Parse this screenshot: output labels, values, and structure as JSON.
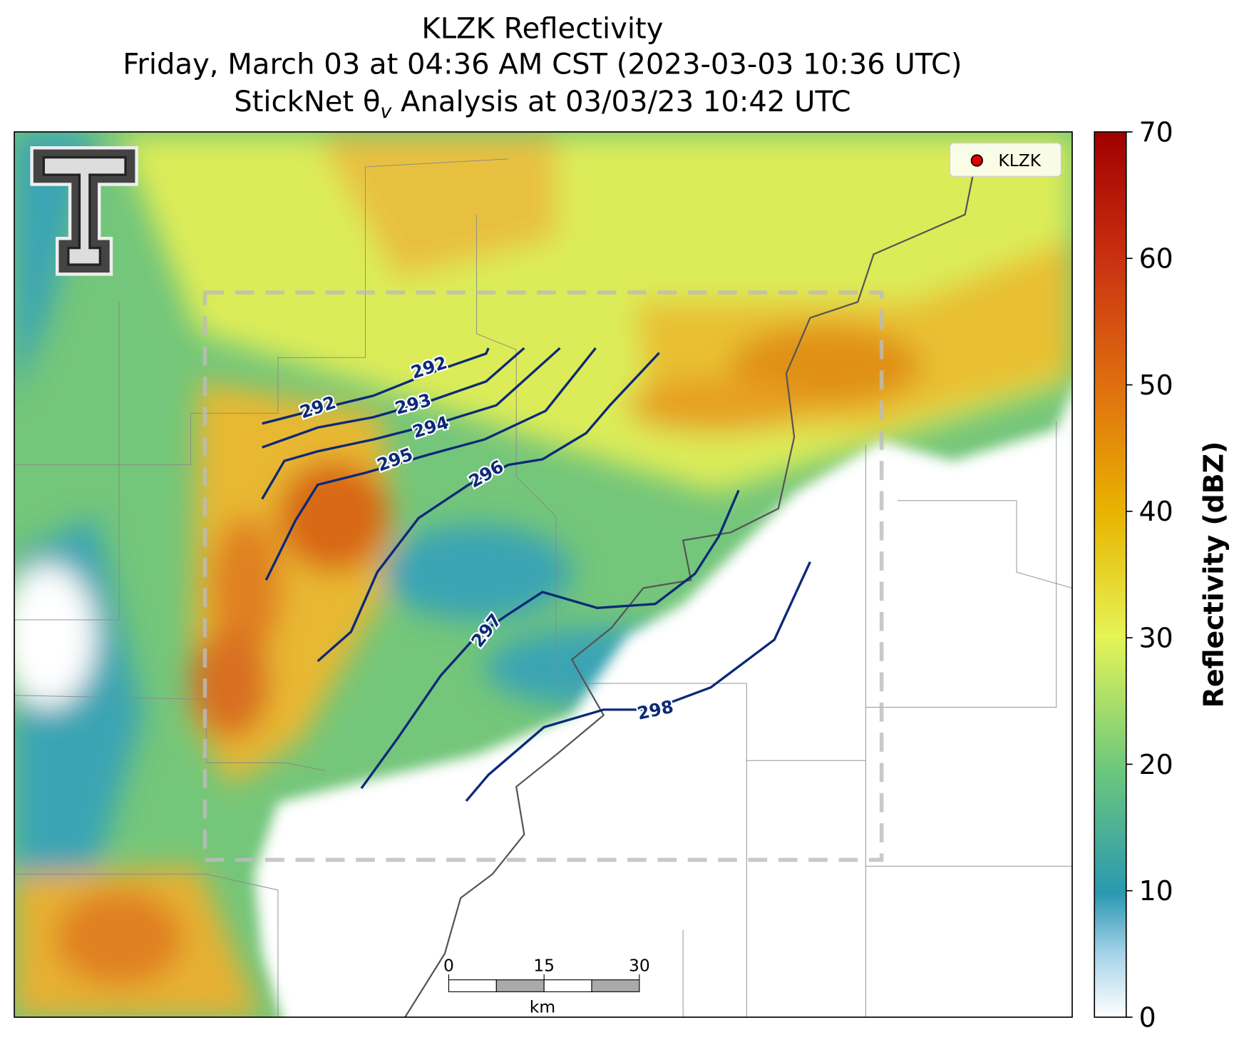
{
  "title": {
    "line1": "KLZK Reflectivity",
    "line2": "Friday, March 03 at 04:36 AM CST (2023-03-03 10:36 UTC)",
    "line3": "StickNet θv Analysis at 03/03/23 10:42 UTC"
  },
  "legend": {
    "label": "KLZK"
  },
  "colorbar": {
    "label": "Reflectivity (dBZ)",
    "lim": [
      0,
      70
    ],
    "ticks": [
      0,
      10,
      20,
      30,
      40,
      50,
      60,
      70
    ]
  },
  "contours": [
    {
      "label": "292"
    },
    {
      "label": "293"
    },
    {
      "label": "294"
    },
    {
      "label": "295"
    },
    {
      "label": "296"
    },
    {
      "label": "297"
    },
    {
      "label": "298"
    }
  ],
  "scale_bar": {
    "ticks": [
      0,
      15,
      30
    ],
    "unit": "km"
  }
}
